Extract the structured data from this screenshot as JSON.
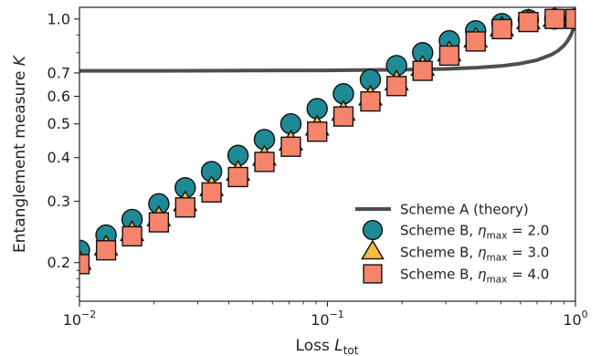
{
  "chart_data": {
    "type": "scatter",
    "title": "",
    "xlabel": "Loss",
    "xlabel_sub": "tot",
    "xlabel_var": "L",
    "ylabel": "Entanglement measure",
    "ylabel_var": "K",
    "xscale": "log",
    "yscale": "log",
    "xlim": [
      0.01,
      1.0
    ],
    "ylim": [
      0.155,
      1.08
    ],
    "grid": false,
    "legend_position": "lower-right",
    "x_ticks": [
      {
        "value": 0.01,
        "mantissa": "10",
        "exp": "−2"
      },
      {
        "value": 0.1,
        "mantissa": "10",
        "exp": "−1"
      },
      {
        "value": 1.0,
        "mantissa": "10",
        "exp": "0"
      }
    ],
    "y_ticks": [
      {
        "value": 0.2,
        "label": "0.2"
      },
      {
        "value": 0.3,
        "label": "0.3"
      },
      {
        "value": 0.4,
        "label": "0.4"
      },
      {
        "value": 0.5,
        "label": "0.5"
      },
      {
        "value": 0.6,
        "label": "0.6"
      },
      {
        "value": 0.7,
        "label": "0.7"
      },
      {
        "value": 1.0,
        "label": "1.0"
      }
    ],
    "x": [
      0.01,
      0.0128,
      0.0163,
      0.0209,
      0.0267,
      0.0341,
      0.0436,
      0.0557,
      0.0712,
      0.0909,
      0.116,
      0.149,
      0.19,
      0.242,
      0.31,
      0.396,
      0.505,
      0.646,
      0.825,
      1.0
    ],
    "series": [
      {
        "name": "Scheme A (theory)",
        "kind": "line",
        "color": "#4a4f4f",
        "x": [
          0.01,
          0.02,
          0.05,
          0.1,
          0.2,
          0.3,
          0.4,
          0.5,
          0.6,
          0.7,
          0.8,
          0.85,
          0.9,
          0.93,
          0.96,
          0.98,
          1.0
        ],
        "values": [
          0.71,
          0.71,
          0.711,
          0.712,
          0.715,
          0.719,
          0.725,
          0.733,
          0.745,
          0.762,
          0.79,
          0.81,
          0.84,
          0.865,
          0.9,
          0.935,
          0.97
        ]
      },
      {
        "name": "Scheme B, ",
        "eta": "η",
        "eta_sub": "max",
        "eta_value": " = 2.0",
        "kind": "marker",
        "marker": "circle",
        "color": "#1e8a96",
        "values": [
          0.217,
          0.24,
          0.266,
          0.295,
          0.328,
          0.365,
          0.406,
          0.451,
          0.5,
          0.553,
          0.61,
          0.67,
          0.735,
          0.8,
          0.866,
          0.925,
          0.97,
          0.995,
          1.0,
          1.0
        ]
      },
      {
        "name": "Scheme B, ",
        "eta": "η",
        "eta_sub": "max",
        "eta_value": " = 3.0",
        "kind": "marker",
        "marker": "triangle",
        "color": "#f2bd3c",
        "values": [
          0.201,
          0.221,
          0.243,
          0.268,
          0.296,
          0.327,
          0.362,
          0.4,
          0.442,
          0.488,
          0.538,
          0.595,
          0.657,
          0.724,
          0.797,
          0.873,
          0.94,
          0.985,
          1.0,
          1.0
        ]
      },
      {
        "name": "Scheme B, ",
        "eta": "η",
        "eta_sub": "max",
        "eta_value": " = 4.0",
        "kind": "marker",
        "marker": "square",
        "color": "#f6846a",
        "values": [
          0.198,
          0.217,
          0.238,
          0.261,
          0.288,
          0.318,
          0.352,
          0.389,
          0.43,
          0.475,
          0.525,
          0.58,
          0.642,
          0.71,
          0.785,
          0.862,
          0.935,
          0.98,
          1.0,
          1.0
        ]
      }
    ]
  }
}
